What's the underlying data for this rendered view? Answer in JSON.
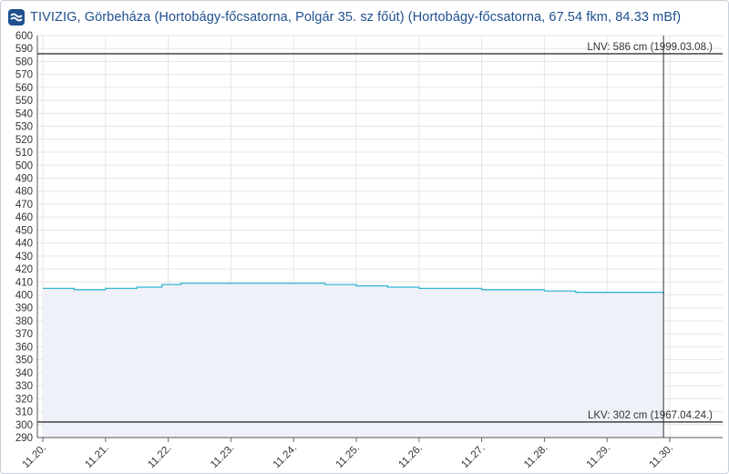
{
  "header": {
    "logo_icon": "tivizig-logo-icon",
    "title": "TIVIZIG, Görbeháza (Hortobágy-főcsatorna, Polgár 35. sz főút) (Hortobágy-főcsatorna, 67.54 fkm, 84.33 mBf)"
  },
  "colors": {
    "title": "#1f4f8f",
    "series_line": "#38b4d6",
    "series_fill": "#eef1f7",
    "reference_line": "#333333",
    "grid": "#e6e6e6"
  },
  "chart_data": {
    "type": "area",
    "ylim": [
      290,
      600
    ],
    "yticks": [
      290,
      300,
      310,
      320,
      330,
      340,
      350,
      360,
      370,
      380,
      390,
      400,
      410,
      420,
      430,
      440,
      450,
      460,
      470,
      480,
      490,
      500,
      510,
      520,
      530,
      540,
      550,
      560,
      570,
      580,
      590,
      600
    ],
    "ytick_labels": [
      "290",
      "300",
      "310",
      "320",
      "330",
      "340",
      "350",
      "360",
      "370",
      "380",
      "390",
      "400",
      "410",
      "420",
      "430",
      "440",
      "450",
      "460",
      "470",
      "480",
      "490",
      "500",
      "510",
      "520",
      "530",
      "540",
      "550",
      "560",
      "570",
      "580",
      "590",
      "600"
    ],
    "xlim": [
      "11.20.",
      "11.30. + 14h"
    ],
    "xtick_labels": [
      "11.20.",
      "11.21.",
      "11.22.",
      "11.23.",
      "11.24.",
      "11.25.",
      "11.26.",
      "11.27.",
      "11.28.",
      "11.29.",
      "11.30."
    ],
    "grid": true,
    "series": [
      {
        "x": [
          0.0,
          0.5,
          1.0,
          1.5,
          1.9,
          2.2,
          2.6,
          3.0,
          3.5,
          4.0,
          4.5,
          5.0,
          5.5,
          6.0,
          6.5,
          7.0,
          7.5,
          8.0,
          8.5,
          9.0,
          9.5,
          9.9
        ],
        "values": [
          405,
          404,
          405,
          406,
          408,
          409,
          409,
          409,
          409,
          409,
          408,
          407,
          406,
          405,
          405,
          404,
          404,
          403,
          402,
          402,
          402,
          401
        ]
      }
    ],
    "reference_lines": [
      {
        "value": 586,
        "label": "LNV: 586 cm (1999.03.08.)"
      },
      {
        "value": 302,
        "label": "LKV: 302 cm (1967.04.24.)"
      }
    ],
    "cursor_line_x": 9.9
  }
}
